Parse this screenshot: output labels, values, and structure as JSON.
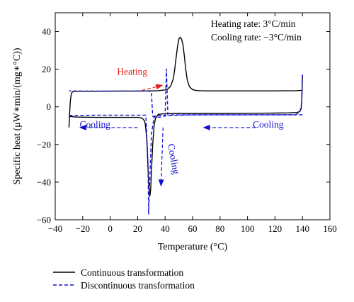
{
  "chart_data": {
    "type": "line",
    "xlabel": "Temperature (°C)",
    "ylabel": "Specific heat (μW∗min/(mg∗°C))",
    "xlim": [
      -40,
      160
    ],
    "ylim": [
      -60,
      50
    ],
    "xticks": [
      -40,
      -20,
      0,
      20,
      40,
      60,
      80,
      100,
      120,
      140,
      160
    ],
    "yticks": [
      -60,
      -40,
      -20,
      0,
      20,
      40
    ],
    "grid": false,
    "legend_position": "bottom-left, below plot",
    "info_text": [
      "Heating rate: 3°C/min",
      "Cooling rate: −3°C/min"
    ],
    "series": [
      {
        "name": "Continuous transformation",
        "style": "solid",
        "color": "#000000",
        "heating": {
          "x": [
            -30,
            -29.5,
            -29,
            -28.5,
            -28,
            -27,
            -25,
            -20,
            -10,
            0,
            10,
            20,
            30,
            35,
            40,
            42,
            44,
            46,
            47,
            48,
            49,
            50,
            51,
            52,
            53,
            54,
            55,
            56,
            57,
            58,
            60,
            62,
            65,
            70,
            80,
            100,
            120,
            135,
            139.5,
            140
          ],
          "y": [
            -11,
            -3,
            3,
            6,
            7.5,
            8.2,
            8.3,
            8.3,
            8.3,
            8.35,
            8.4,
            8.4,
            8.5,
            8.6,
            9,
            9.5,
            11,
            15,
            20,
            26,
            32,
            36,
            37,
            36,
            33,
            27,
            20,
            15,
            12,
            10.5,
            9.2,
            8.8,
            8.6,
            8.5,
            8.5,
            8.5,
            8.5,
            8.6,
            8.8,
            9
          ]
        },
        "cooling": {
          "x": [
            140,
            139.5,
            139,
            138,
            136,
            130,
            120,
            100,
            80,
            60,
            50,
            40,
            35,
            33,
            32,
            31,
            30,
            29.5,
            29,
            28.5,
            28,
            27.5,
            27,
            26.5,
            26,
            25.5,
            25,
            24,
            23,
            22,
            20,
            15,
            10,
            0,
            -10,
            -20,
            -25,
            -28,
            -30
          ],
          "y": [
            17,
            3,
            -1,
            -2.5,
            -3,
            -3.2,
            -3.3,
            -3.4,
            -3.5,
            -3.5,
            -3.5,
            -3.6,
            -4,
            -6,
            -10,
            -20,
            -35,
            -44,
            -47,
            -46,
            -40,
            -32,
            -22,
            -16,
            -12,
            -9,
            -7.5,
            -6.5,
            -6,
            -5.8,
            -5.6,
            -5.6,
            -5.6,
            -5.6,
            -5.6,
            -5.5,
            -5.4,
            -5.2,
            -5
          ]
        }
      },
      {
        "name": "Discontinuous transformation",
        "style": "dashed",
        "color": "#1010d0",
        "heating": {
          "x": [
            -30,
            -20,
            -10,
            0,
            10,
            20,
            26,
            27.5,
            28,
            29,
            30,
            32,
            35,
            38,
            40,
            41,
            42,
            43,
            44,
            60,
            80,
            100,
            120,
            135,
            138,
            139.5,
            140
          ],
          "y": [
            -4.5,
            -4.5,
            -4.4,
            -4.4,
            -4.4,
            -4.4,
            -4.4,
            -30,
            -57,
            -35,
            -15,
            -5,
            -4.6,
            -4.5,
            -4.5,
            20,
            -4.4,
            -4.4,
            -4.3,
            -4.2,
            -4.2,
            -4.2,
            -4.2,
            -4.2,
            -3,
            2,
            18
          ]
        },
        "cooling": {
          "x": [
            140,
            136,
            120,
            100,
            80,
            60,
            50,
            45,
            42,
            40,
            38,
            36,
            34,
            32,
            31,
            30,
            29.5,
            29,
            28.5,
            28,
            27.5,
            27,
            26,
            25,
            24,
            22,
            20,
            10,
            0,
            -10,
            -20,
            -30
          ],
          "y": [
            -4.2,
            -4.2,
            -4.2,
            -4.2,
            -4.2,
            -4.3,
            -4.4,
            -4.5,
            -4.6,
            -4.8,
            -5.2,
            -5.5,
            -5.5,
            -5.4,
            -5,
            8,
            8,
            8.2,
            8.3,
            8.3,
            8.4,
            8.4,
            8.4,
            8.4,
            8.4,
            8.4,
            8.4,
            8.4,
            8.4,
            8.4,
            8.4,
            8.5
          ]
        }
      }
    ],
    "annotations": [
      {
        "text": "Heating",
        "color": "#e02020",
        "anchor_x": 16,
        "anchor_y": 17,
        "arrow_from": [
          23,
          8.7
        ],
        "arrow_to": [
          38,
          11.5
        ]
      },
      {
        "text": "Cooling",
        "color": "#1010d0",
        "anchor_x": -11,
        "anchor_y": -11,
        "arrow_from": [
          20,
          -11
        ],
        "arrow_to": [
          -22,
          -11
        ]
      },
      {
        "text": "Cooling",
        "color": "#1010d0",
        "anchor_x": 115,
        "anchor_y": -11,
        "arrow_from": [
          106,
          -11
        ],
        "arrow_to": [
          68,
          -11
        ]
      },
      {
        "text": "Cooling",
        "color": "#1010d0",
        "anchor_x": 44,
        "anchor_y": -28,
        "rotate": 80,
        "arrow_from": [
          38.5,
          -11
        ],
        "arrow_to": [
          37,
          -42
        ]
      }
    ]
  }
}
